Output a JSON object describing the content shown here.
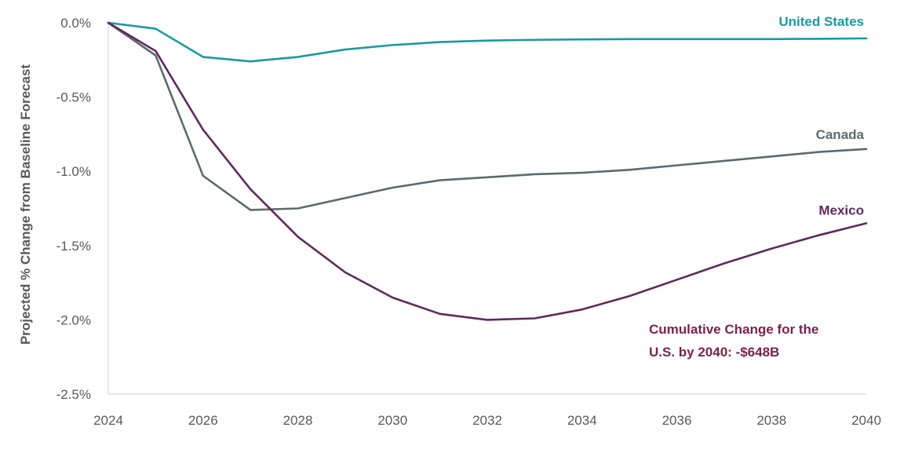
{
  "chart_data": {
    "type": "line",
    "title": "",
    "xlabel": "",
    "ylabel": "Projected % Change from Baseline Forecast",
    "xlim": [
      2024,
      2040
    ],
    "ylim": [
      -2.5,
      0
    ],
    "x_ticks": [
      2024,
      2026,
      2028,
      2030,
      2032,
      2034,
      2036,
      2038,
      2040
    ],
    "y_ticks": [
      0,
      -0.5,
      -1.0,
      -1.5,
      -2.0,
      -2.5
    ],
    "y_tick_labels": [
      "0.0%",
      "-0.5%",
      "-1.0%",
      "-1.5%",
      "-2.0%",
      "-2.5%"
    ],
    "grid": false,
    "x": [
      2024,
      2025,
      2026,
      2027,
      2028,
      2029,
      2030,
      2031,
      2032,
      2033,
      2034,
      2035,
      2036,
      2037,
      2038,
      2039,
      2040
    ],
    "series": [
      {
        "name": "United States",
        "color": "#1A9AA0",
        "values": [
          0.0,
          -0.04,
          -0.23,
          -0.26,
          -0.23,
          -0.18,
          -0.15,
          -0.13,
          -0.12,
          -0.115,
          -0.112,
          -0.11,
          -0.11,
          -0.11,
          -0.11,
          -0.108,
          -0.105
        ]
      },
      {
        "name": "Canada",
        "color": "#5B6B6B",
        "values": [
          0.0,
          -0.22,
          -1.03,
          -1.26,
          -1.25,
          -1.18,
          -1.11,
          -1.06,
          -1.04,
          -1.02,
          -1.01,
          -0.99,
          -0.96,
          -0.93,
          -0.9,
          -0.87,
          -0.85
        ]
      },
      {
        "name": "Mexico",
        "color": "#5E2A5E",
        "values": [
          0.0,
          -0.19,
          -0.72,
          -1.12,
          -1.44,
          -1.68,
          -1.85,
          -1.96,
          -2.0,
          -1.99,
          -1.93,
          -1.84,
          -1.73,
          -1.62,
          -1.52,
          -1.43,
          -1.35
        ]
      }
    ],
    "annotation": {
      "lines": [
        "Cumulative Change for the",
        "U.S. by 2040: -$648B"
      ],
      "color": "#7A2151"
    }
  }
}
